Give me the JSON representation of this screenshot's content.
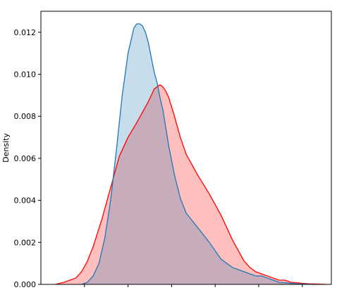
{
  "chart_data": {
    "type": "area",
    "title": "",
    "xlabel": "",
    "ylabel": "Density",
    "ylim": [
      0,
      0.013
    ],
    "y_ticks": [
      0.0,
      0.002,
      0.004,
      0.006,
      0.008,
      0.01,
      0.012
    ],
    "y_tick_labels": [
      "0.000",
      "0.002",
      "0.004",
      "0.006",
      "0.008",
      "0.010",
      "0.012"
    ],
    "xlim": [
      0,
      100
    ],
    "x_ticks": [
      15,
      30,
      45,
      60,
      75,
      90
    ],
    "grid": false,
    "legend": "none",
    "series": [
      {
        "color": "#ff0000",
        "fill": "#ff0000",
        "fill_opacity": 0.25,
        "x": [
          5,
          8,
          12,
          14,
          16,
          18,
          21,
          24,
          27,
          30,
          33,
          35,
          37,
          38,
          39,
          40,
          41,
          42,
          43,
          44,
          46,
          48,
          50,
          54,
          58,
          62,
          66,
          70,
          72,
          74,
          76,
          78,
          80,
          82,
          84,
          86,
          88,
          90,
          92,
          94,
          96,
          98
        ],
        "y": [
          0.0,
          0.0001,
          0.0003,
          0.0006,
          0.0011,
          0.0018,
          0.0031,
          0.0046,
          0.0061,
          0.007,
          0.0077,
          0.0082,
          0.0087,
          0.009,
          0.0093,
          0.0094,
          0.0095,
          0.0094,
          0.0092,
          0.0089,
          0.008,
          0.007,
          0.0062,
          0.0052,
          0.0043,
          0.0033,
          0.0021,
          0.0011,
          0.0008,
          0.0006,
          0.0005,
          0.0004,
          0.0003,
          0.0002,
          0.0002,
          0.0001,
          8e-05,
          5e-05,
          3e-05,
          2e-05,
          1e-05,
          0.0
        ]
      },
      {
        "color": "#1f77b4",
        "fill": "#1f77b4",
        "fill_opacity": 0.25,
        "x": [
          14,
          16,
          18,
          20,
          22,
          24,
          26,
          28,
          30,
          32,
          33,
          34,
          35,
          36,
          37,
          38,
          39,
          40,
          41,
          42,
          44,
          46,
          48,
          50,
          54,
          58,
          62,
          66,
          70,
          72,
          74,
          76,
          78,
          80,
          82,
          84,
          86,
          88,
          90,
          92,
          94
        ],
        "y": [
          0.0,
          0.0001,
          0.0004,
          0.001,
          0.0022,
          0.004,
          0.0064,
          0.009,
          0.011,
          0.0122,
          0.0124,
          0.0124,
          0.0123,
          0.012,
          0.0115,
          0.0108,
          0.0101,
          0.0096,
          0.0089,
          0.0083,
          0.0066,
          0.0052,
          0.0041,
          0.0034,
          0.0027,
          0.002,
          0.0012,
          0.0008,
          0.0006,
          0.0005,
          0.0004,
          0.0004,
          0.0003,
          0.0002,
          0.0001,
          8e-05,
          5e-05,
          3e-05,
          2e-05,
          1e-05,
          0.0
        ]
      }
    ]
  }
}
